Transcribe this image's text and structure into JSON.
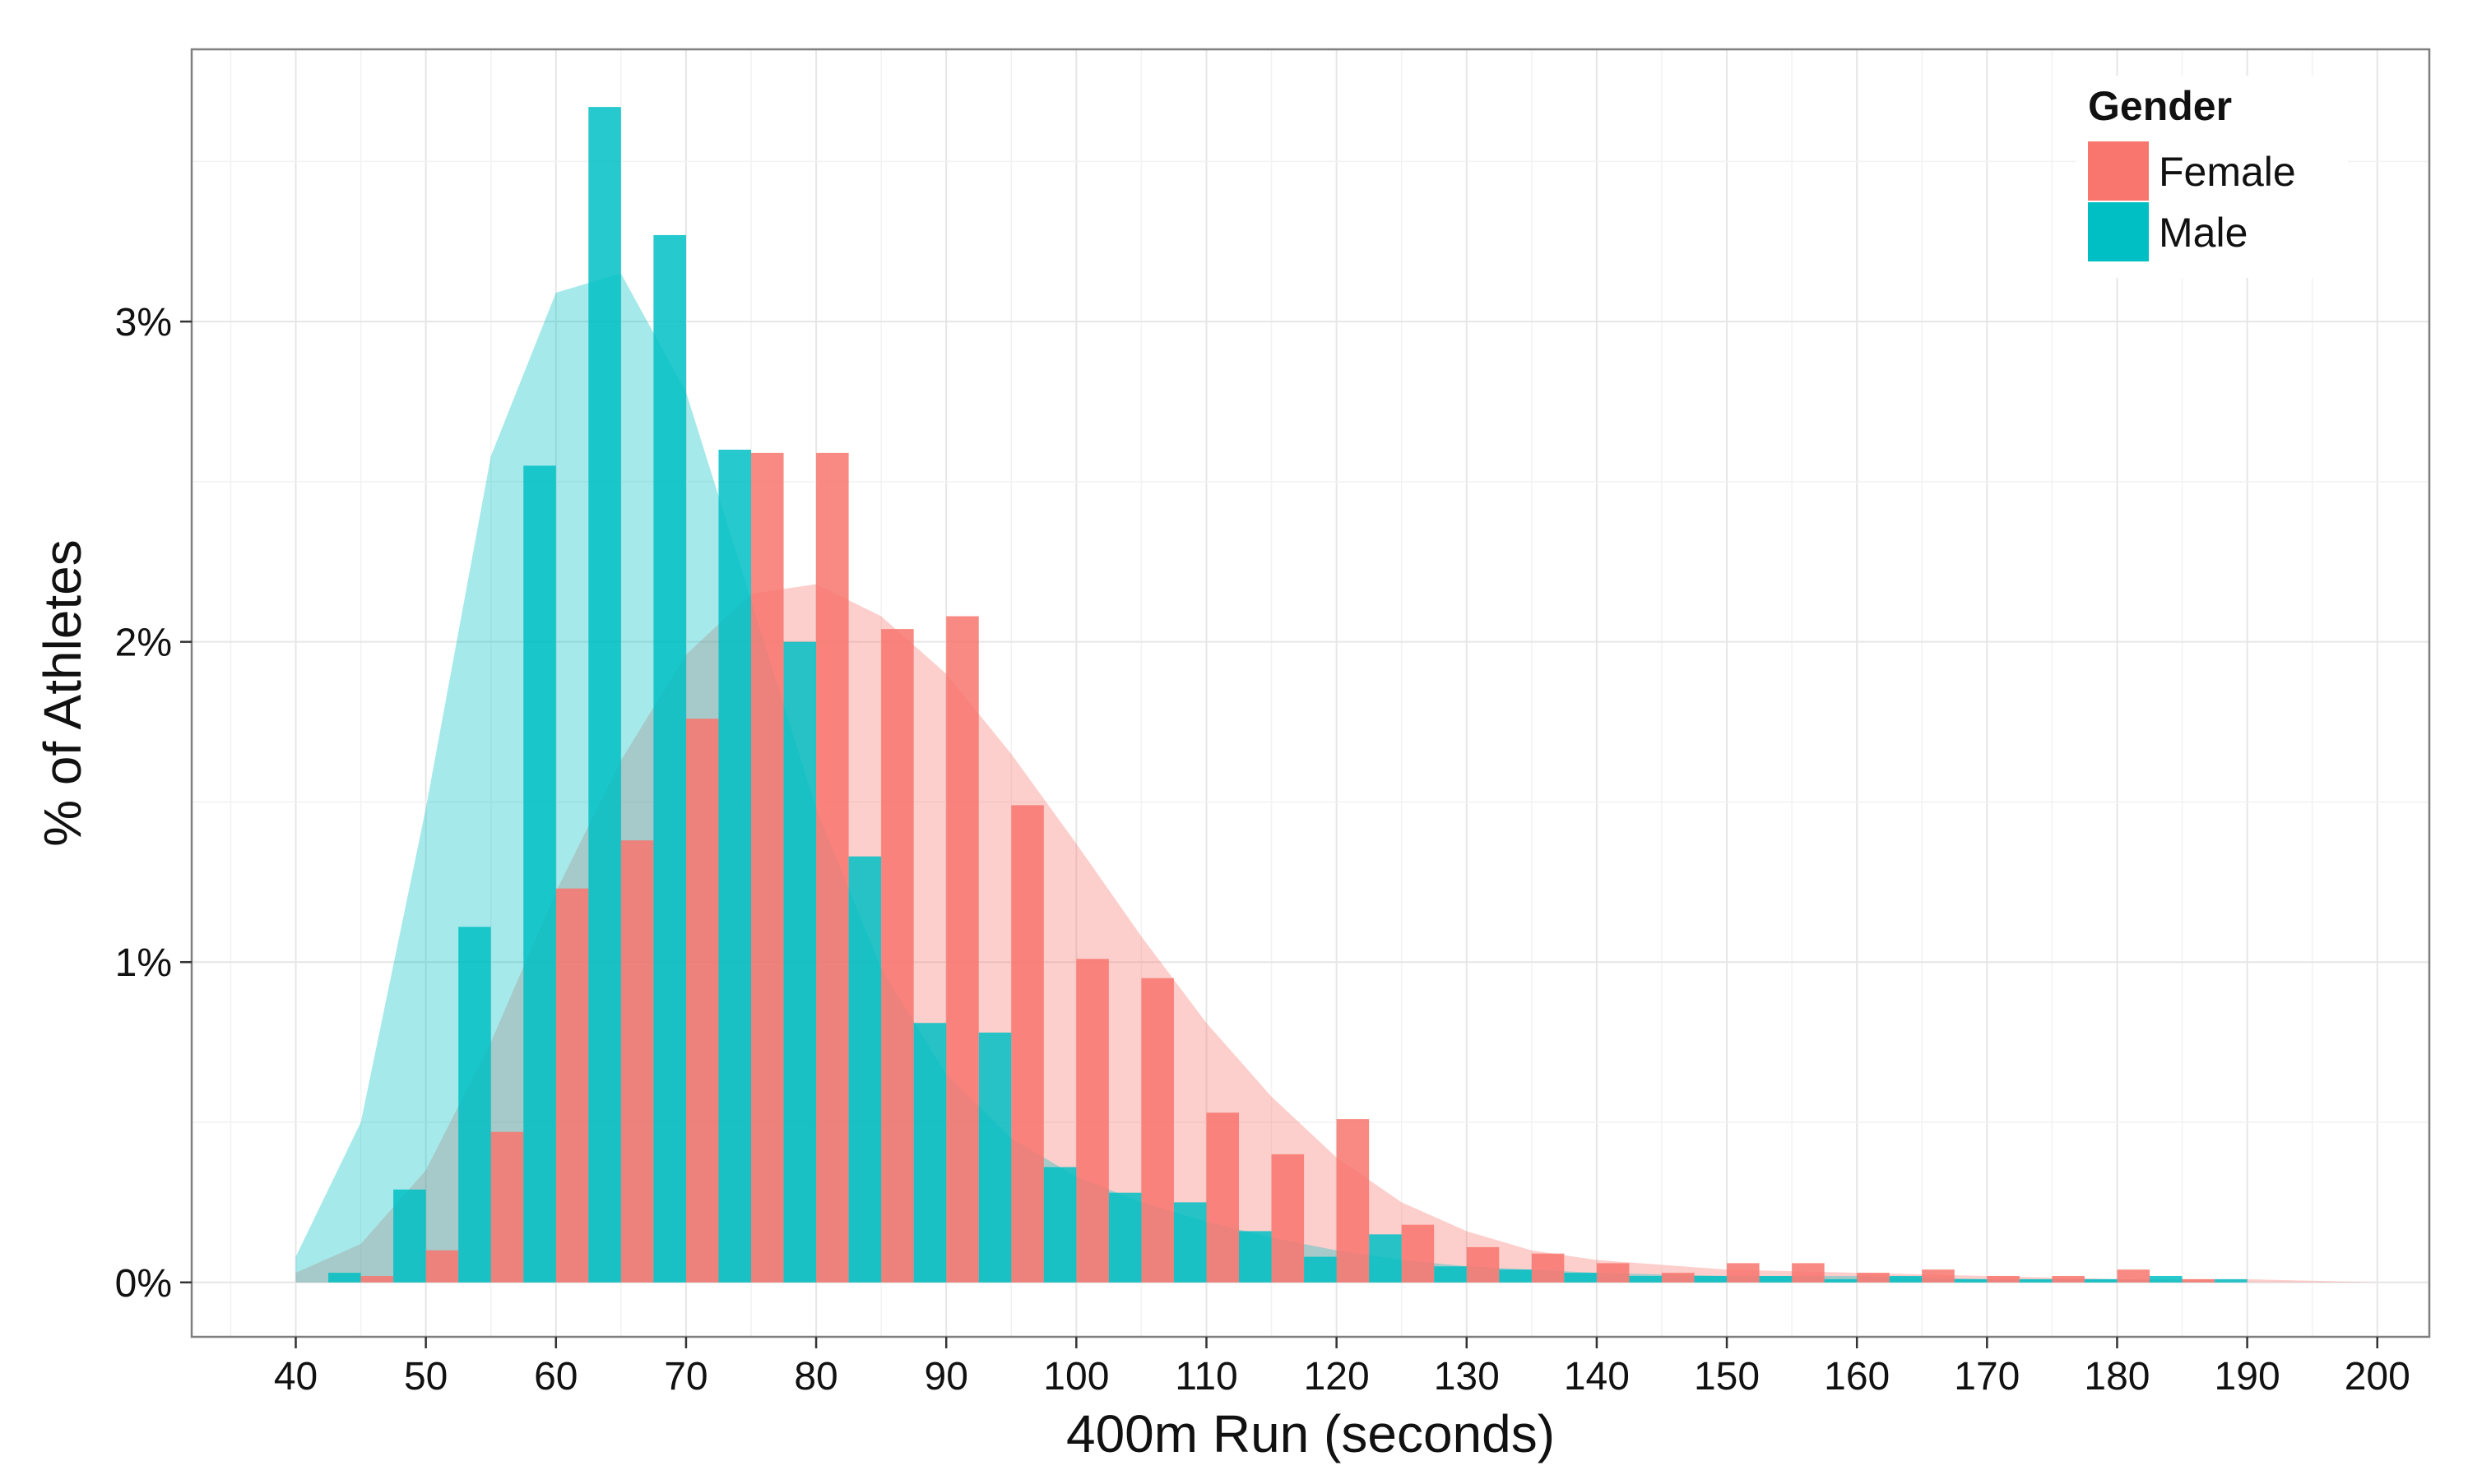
{
  "chart_data": {
    "type": "bar",
    "title": "",
    "xlabel": "400m Run (seconds)",
    "ylabel": "% of Athletes",
    "xlim": [
      32,
      204
    ],
    "ylim": [
      -0.0017,
      0.0385
    ],
    "x_ticks": [
      40,
      50,
      60,
      70,
      80,
      90,
      100,
      110,
      120,
      130,
      140,
      150,
      160,
      170,
      180,
      190,
      200
    ],
    "y_ticks": [
      0,
      0.01,
      0.02,
      0.03
    ],
    "y_tick_labels": [
      "0%",
      "1%",
      "2%",
      "3%"
    ],
    "grid": true,
    "bin_width": 5,
    "legend": {
      "title": "Gender",
      "position": "top-right",
      "entries": [
        {
          "label": "Female",
          "color": "#F8766D"
        },
        {
          "label": "Male",
          "color": "#00BFC4"
        }
      ]
    },
    "series": [
      {
        "name": "Female",
        "color": "#F8766D",
        "bar_centers": [
          42.5,
          47.5,
          52.5,
          57.5,
          62.5,
          67.5,
          72.5,
          77.5,
          82.5,
          87.5,
          92.5,
          97.5,
          102.5,
          107.5,
          112.5,
          117.5,
          122.5,
          127.5,
          132.5,
          137.5,
          142.5,
          147.5,
          152.5,
          157.5,
          162.5,
          167.5,
          172.5,
          177.5,
          182.5,
          187.5,
          192.5,
          197.5
        ],
        "values": [
          0.0,
          0.0002,
          0.001,
          0.0047,
          0.0123,
          0.0138,
          0.0176,
          0.0259,
          0.0259,
          0.0204,
          0.0208,
          0.0149,
          0.0101,
          0.0095,
          0.0053,
          0.004,
          0.0051,
          0.0018,
          0.0011,
          0.0009,
          0.0006,
          0.0003,
          0.0006,
          0.0006,
          0.0003,
          0.0004,
          0.0002,
          0.0002,
          0.0004,
          0.0001,
          0.0,
          0.0
        ],
        "density_x": [
          40,
          45,
          50,
          55,
          60,
          65,
          70,
          75,
          80,
          85,
          90,
          95,
          100,
          105,
          110,
          115,
          120,
          125,
          130,
          135,
          140,
          150,
          160,
          170,
          180,
          190,
          200
        ],
        "density_y": [
          0.0003,
          0.0012,
          0.0035,
          0.0075,
          0.0122,
          0.0163,
          0.0196,
          0.0215,
          0.0218,
          0.0208,
          0.019,
          0.0165,
          0.0137,
          0.0108,
          0.0081,
          0.0058,
          0.0039,
          0.0025,
          0.0016,
          0.001,
          0.0007,
          0.0004,
          0.0003,
          0.0002,
          0.0001,
          0.0001,
          0.0
        ]
      },
      {
        "name": "Male",
        "color": "#00BFC4",
        "bar_centers": [
          42.5,
          47.5,
          52.5,
          57.5,
          62.5,
          67.5,
          72.5,
          77.5,
          82.5,
          87.5,
          92.5,
          97.5,
          102.5,
          107.5,
          112.5,
          117.5,
          122.5,
          127.5,
          132.5,
          137.5,
          142.5,
          147.5,
          152.5,
          157.5,
          162.5,
          167.5,
          172.5,
          177.5,
          182.5,
          187.5,
          192.5,
          197.5
        ],
        "values": [
          0.0003,
          0.0029,
          0.0111,
          0.0255,
          0.0367,
          0.0327,
          0.026,
          0.02,
          0.0133,
          0.0081,
          0.0078,
          0.0036,
          0.0028,
          0.0025,
          0.0016,
          0.0008,
          0.0015,
          0.0005,
          0.0004,
          0.0003,
          0.0002,
          0.0002,
          0.0002,
          0.0001,
          0.0002,
          0.0001,
          0.0001,
          0.0001,
          0.0002,
          0.0001,
          0.0,
          0.0
        ],
        "density_x": [
          40,
          45,
          50,
          55,
          60,
          65,
          70,
          75,
          80,
          85,
          90,
          95,
          100,
          105,
          110,
          115,
          120,
          125,
          130,
          135,
          140,
          150,
          160,
          170,
          180,
          190,
          200
        ],
        "density_y": [
          0.0008,
          0.005,
          0.0148,
          0.0258,
          0.0309,
          0.0315,
          0.0278,
          0.0213,
          0.0148,
          0.0098,
          0.0065,
          0.0045,
          0.0033,
          0.0025,
          0.0019,
          0.0014,
          0.001,
          0.0007,
          0.0005,
          0.0004,
          0.0003,
          0.0002,
          0.0002,
          0.0001,
          0.0001,
          0.0,
          0.0
        ]
      }
    ]
  }
}
